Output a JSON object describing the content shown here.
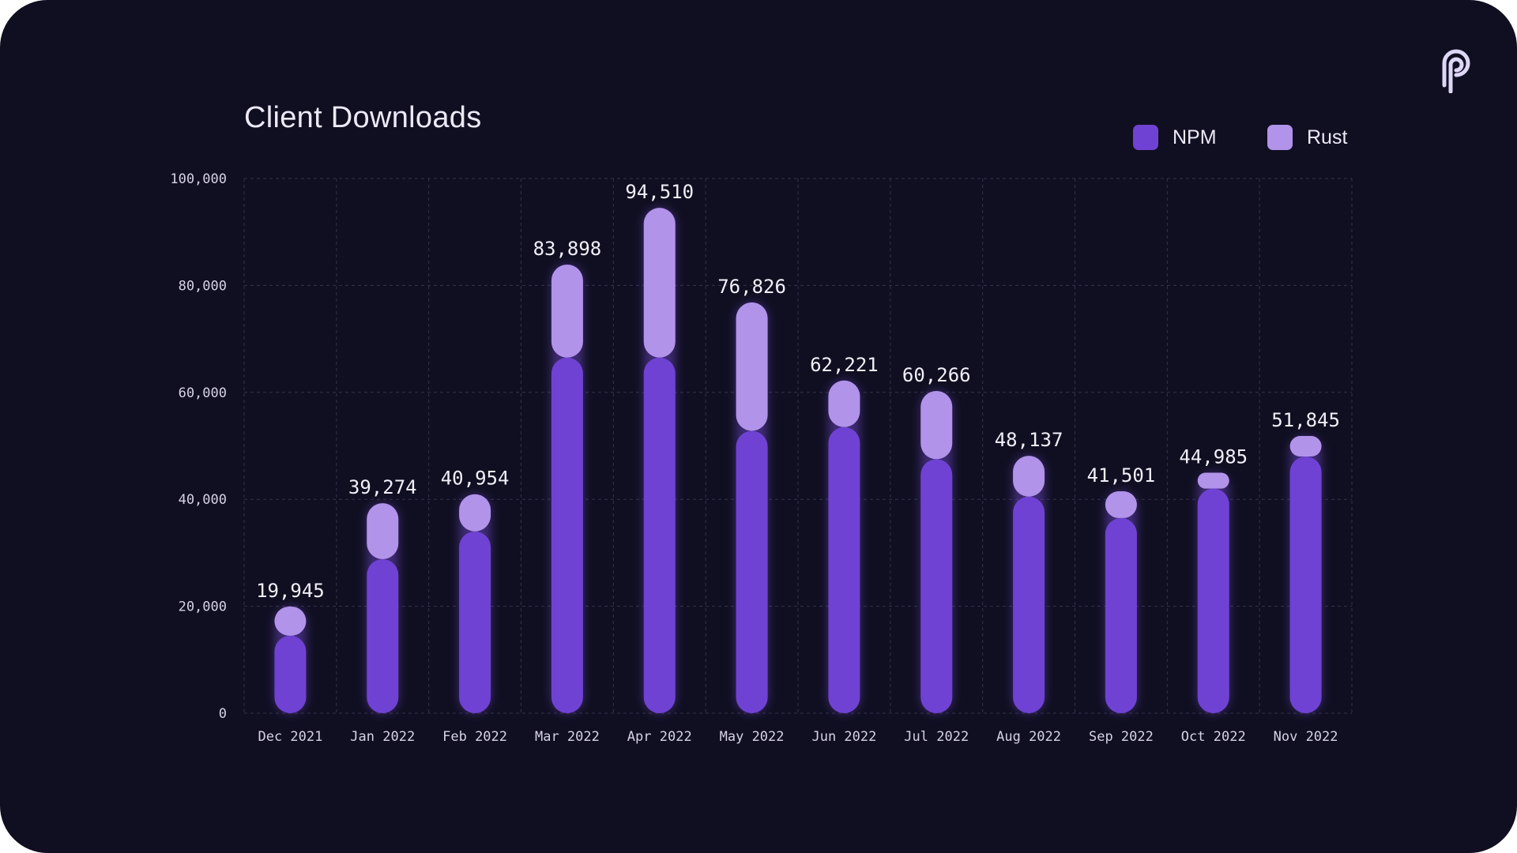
{
  "chart_data": {
    "type": "bar",
    "stacked": true,
    "title": "Client Downloads",
    "xlabel": "",
    "ylabel": "",
    "ylim": [
      0,
      100000
    ],
    "yticks": [
      "0",
      "20,000",
      "40,000",
      "60,000",
      "80,000",
      "100,000"
    ],
    "ytick_values": [
      0,
      20000,
      40000,
      60000,
      80000,
      100000
    ],
    "grid": true,
    "legend_position": "top-right",
    "categories": [
      "Dec 2021",
      "Jan 2022",
      "Feb 2022",
      "Mar 2022",
      "Apr 2022",
      "May 2022",
      "Jun 2022",
      "Jul 2022",
      "Aug 2022",
      "Sep 2022",
      "Oct 2022",
      "Nov 2022"
    ],
    "series": [
      {
        "name": "NPM",
        "color": "#6f42d3",
        "values": [
          14500,
          28800,
          34000,
          66500,
          66500,
          52800,
          53500,
          47500,
          40500,
          36500,
          42000,
          48000
        ]
      },
      {
        "name": "Rust",
        "color": "#b193ea",
        "values": [
          5445,
          10474,
          6954,
          17398,
          28010,
          24026,
          8721,
          12766,
          7637,
          5001,
          2985,
          3845
        ]
      }
    ],
    "totals": [
      "19,945",
      "39,274",
      "40,954",
      "83,898",
      "94,510",
      "76,826",
      "62,221",
      "60,266",
      "48,137",
      "41,501",
      "44,985",
      "51,845"
    ]
  },
  "logo": {
    "icon": "brand-logo-icon",
    "color": "#ded6f5"
  }
}
